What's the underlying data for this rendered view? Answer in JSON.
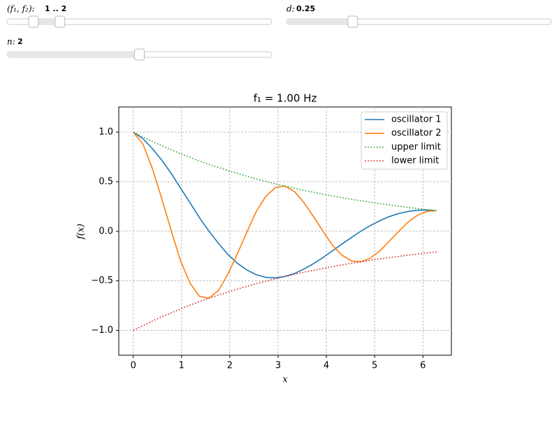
{
  "controls": [
    {
      "label": "(f₁, f₂):",
      "value_label": "1 .. 2",
      "values": [
        1,
        2
      ],
      "min": 0,
      "max": 10
    },
    {
      "label": "d:",
      "value_label": "0.25",
      "values": [
        0.25
      ],
      "min": 0,
      "max": 1
    },
    {
      "label": "n:",
      "value_label": "2",
      "values": [
        2
      ],
      "min": 0,
      "max": 4
    }
  ],
  "chart_data": {
    "type": "line",
    "title": "f₁ = 1.00 Hz",
    "xlabel": "x",
    "ylabel": "f(x)",
    "x": [
      0,
      0.2,
      0.39,
      0.59,
      0.79,
      0.98,
      1.18,
      1.37,
      1.57,
      1.77,
      1.96,
      2.16,
      2.36,
      2.55,
      2.75,
      2.95,
      3.14,
      3.34,
      3.53,
      3.73,
      3.93,
      4.12,
      4.32,
      4.52,
      4.71,
      4.91,
      5.11,
      5.3,
      5.5,
      5.69,
      5.89,
      6.09,
      6.28
    ],
    "series": [
      {
        "name": "oscillator 1",
        "color": "#1f77b4",
        "linestyle": "solid",
        "values": [
          1,
          0.934,
          0.838,
          0.718,
          0.581,
          0.435,
          0.285,
          0.138,
          0,
          -0.125,
          -0.234,
          -0.324,
          -0.392,
          -0.439,
          -0.465,
          -0.47,
          -0.456,
          -0.426,
          -0.382,
          -0.327,
          -0.265,
          -0.198,
          -0.13,
          -0.063,
          0,
          0.057,
          0.107,
          0.148,
          0.179,
          0.2,
          0.212,
          0.214,
          0.208
        ]
      },
      {
        "name": "oscillator 2",
        "color": "#ff7f0e",
        "linestyle": "solid",
        "values": [
          1,
          0.88,
          0.641,
          0.33,
          0,
          -0.299,
          -0.527,
          -0.655,
          -0.675,
          -0.594,
          -0.433,
          -0.223,
          0,
          0.202,
          0.356,
          0.443,
          0.456,
          0.401,
          0.292,
          0.151,
          0,
          -0.137,
          -0.24,
          -0.299,
          -0.308,
          -0.271,
          -0.197,
          -0.102,
          0,
          0.092,
          0.162,
          0.202,
          0.208
        ]
      },
      {
        "name": "upper limit",
        "color": "#2ca02c",
        "linestyle": "dotted",
        "values": [
          1,
          0.952,
          0.907,
          0.863,
          0.822,
          0.782,
          0.745,
          0.709,
          0.675,
          0.643,
          0.612,
          0.583,
          0.555,
          0.528,
          0.503,
          0.479,
          0.456,
          0.434,
          0.413,
          0.394,
          0.375,
          0.357,
          0.34,
          0.323,
          0.308,
          0.293,
          0.279,
          0.266,
          0.253,
          0.241,
          0.229,
          0.218,
          0.208
        ]
      },
      {
        "name": "lower limit",
        "color": "#d62728",
        "linestyle": "dotted",
        "values": [
          -1,
          -0.952,
          -0.907,
          -0.863,
          -0.822,
          -0.782,
          -0.745,
          -0.709,
          -0.675,
          -0.643,
          -0.612,
          -0.583,
          -0.555,
          -0.528,
          -0.503,
          -0.479,
          -0.456,
          -0.434,
          -0.413,
          -0.394,
          -0.375,
          -0.357,
          -0.34,
          -0.323,
          -0.308,
          -0.293,
          -0.279,
          -0.266,
          -0.253,
          -0.241,
          -0.229,
          -0.218,
          -0.208
        ]
      }
    ],
    "xlim": [
      -0.3,
      6.59
    ],
    "xticks": [
      0,
      1,
      2,
      3,
      4,
      5,
      6
    ],
    "ylim": [
      -1.25,
      1.254
    ],
    "yticks": [
      {
        "value": -1,
        "label": "−1.0"
      },
      {
        "value": -0.5,
        "label": "−0.5"
      },
      {
        "value": 0,
        "label": "0.0"
      },
      {
        "value": 0.5,
        "label": "0.5"
      },
      {
        "value": 1,
        "label": "1.0"
      }
    ],
    "grid": true,
    "legend": "upper right"
  }
}
